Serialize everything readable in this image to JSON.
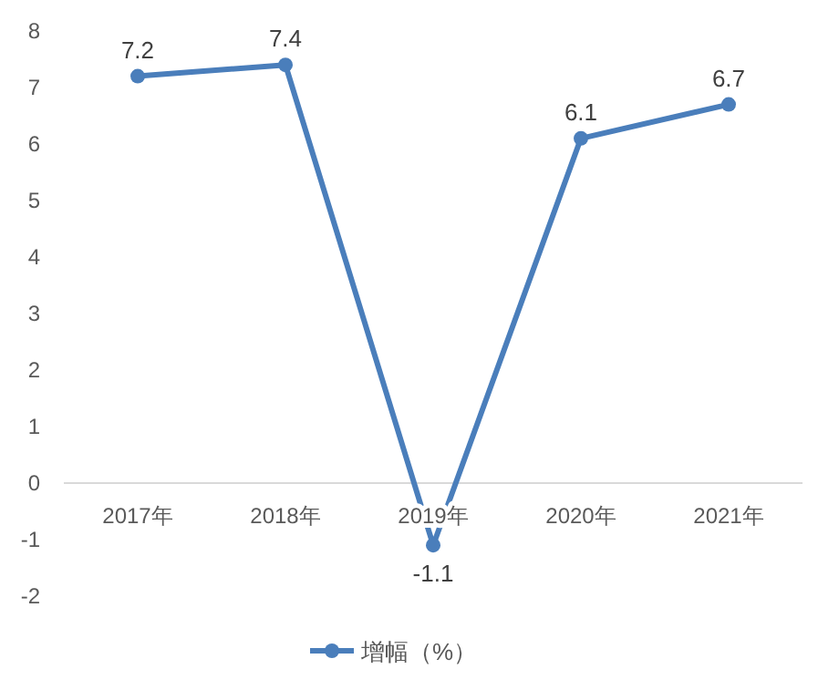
{
  "chart_data": {
    "type": "line",
    "categories": [
      "2017年",
      "2018年",
      "2019年",
      "2020年",
      "2021年"
    ],
    "series": [
      {
        "name": "增幅（%）",
        "color": "#4a7ebb",
        "values": [
          7.2,
          7.4,
          -1.1,
          6.1,
          6.7
        ]
      }
    ],
    "ylim": [
      -2,
      8
    ],
    "yticks": [
      -2,
      -1,
      0,
      1,
      2,
      3,
      4,
      5,
      6,
      7,
      8
    ],
    "data_labels": true,
    "legend": "bottom",
    "marker": "circle"
  }
}
